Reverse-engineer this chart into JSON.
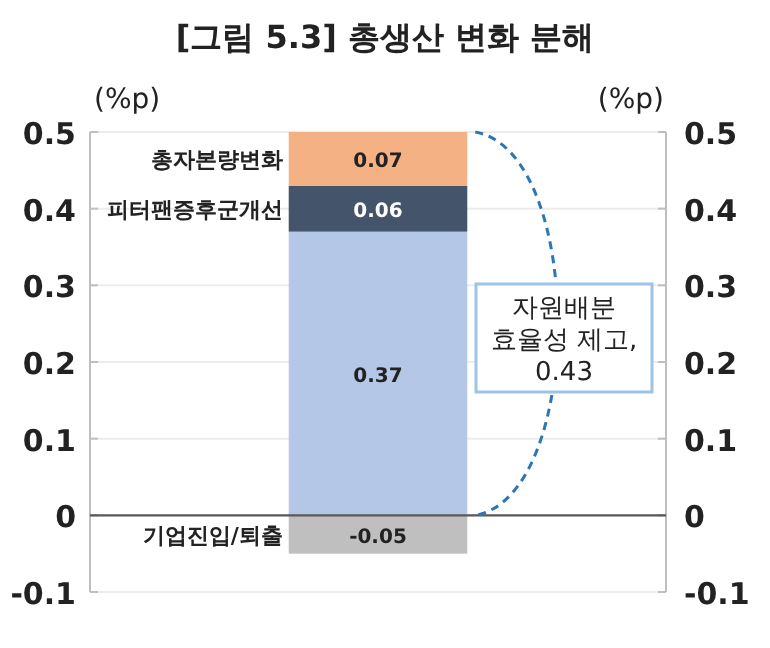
{
  "chart_data": {
    "type": "bar",
    "title": "[그림 5.3] 총생산 변화 분해",
    "ylabel": "(%p)",
    "y2label": "(%p)",
    "categories": [
      null
    ],
    "series": [
      {
        "name": "기업진입/퇴출",
        "color": "#bfbfbf",
        "values": [
          -0.05
        ]
      },
      {
        "color": "#b4c7e7",
        "values": [
          0.37
        ]
      },
      {
        "name": "피터팬증후군개선",
        "color": "#44546a",
        "values": [
          0.06
        ]
      },
      {
        "name": "총자본량변화",
        "color": "#f4b183",
        "values": [
          0.07
        ]
      }
    ],
    "stacked": true,
    "data_labels": true,
    "grid": "y",
    "ylim": [
      -0.1,
      0.5
    ],
    "yticks": [
      -0.1,
      0,
      0.1,
      0.2,
      0.3,
      0.4,
      0.5
    ],
    "y2lim": [
      -0.1,
      0.5
    ],
    "y2ticks": [
      -0.1,
      0,
      0.1,
      0.2,
      0.3,
      0.4,
      0.5
    ],
    "annotations": [
      "자원배분\n효율성 제고,\n0.43"
    ]
  }
}
